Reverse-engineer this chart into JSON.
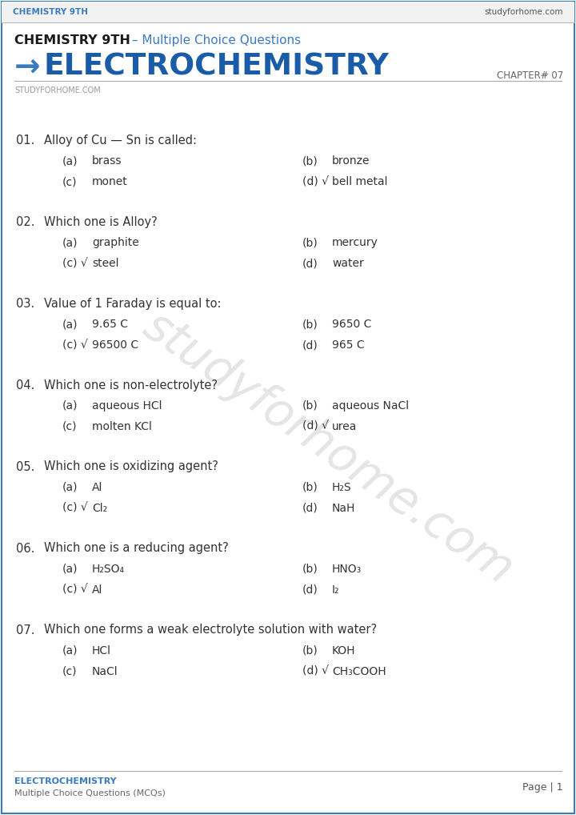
{
  "bg_color": "#ffffff",
  "border_color": "#3a7abf",
  "header_top_left": "CHEMISTRY 9TH",
  "header_top_right": "studyforhome.com",
  "header_text_color": "#3a7abf",
  "header_right_color": "#555555",
  "header_line_color": "#aaaaaa",
  "header_bg_color": "#f5f5f5",
  "title_line1_black": "CHEMISTRY 9TH",
  "title_line1_blue": " – Multiple Choice Questions",
  "title_line2": "ELECTROCHEMISTRY",
  "title_arrow": "→",
  "chapter_label": "CHAPTER# 07",
  "subtitle": "STUDYFORHOME.COM",
  "footer_left1": "ELECTROCHEMISTRY",
  "footer_left2": "Multiple Choice Questions (MCQs)",
  "footer_right": "Page | 1",
  "footer_line_color": "#aaaaaa",
  "watermark_text": "studyforhome.com",
  "blue": "#3a7abf",
  "darkgray": "#333333",
  "lightgray": "#888888",
  "questions": [
    {
      "num": "01.",
      "question": "Alloy of Cu — Sn is called:",
      "a_label": "(a)",
      "a_text": "brass",
      "b_label": "(b)",
      "b_text": "bronze",
      "c_label": "(c)",
      "c_text": "monet",
      "d_label": "(d) √",
      "d_text": "bell metal"
    },
    {
      "num": "02.",
      "question": "Which one is Alloy?",
      "a_label": "(a)",
      "a_text": "graphite",
      "b_label": "(b)",
      "b_text": "mercury",
      "c_label": "(c) √",
      "c_text": "steel",
      "d_label": "(d)",
      "d_text": "water"
    },
    {
      "num": "03.",
      "question": "Value of 1 Faraday is equal to:",
      "a_label": "(a)",
      "a_text": "9.65 C",
      "b_label": "(b)",
      "b_text": "9650 C",
      "c_label": "(c) √",
      "c_text": "96500 C",
      "d_label": "(d)",
      "d_text": "965 C"
    },
    {
      "num": "04.",
      "question": "Which one is non-electrolyte?",
      "a_label": "(a)",
      "a_text": "aqueous HCl",
      "b_label": "(b)",
      "b_text": "aqueous NaCl",
      "c_label": "(c)",
      "c_text": "molten KCl",
      "d_label": "(d) √",
      "d_text": "urea"
    },
    {
      "num": "05.",
      "question": "Which one is oxidizing agent?",
      "a_label": "(a)",
      "a_text": "Al",
      "b_label": "(b)",
      "b_text": "H₂S",
      "c_label": "(c) √",
      "c_text": "Cl₂",
      "d_label": "(d)",
      "d_text": "NaH"
    },
    {
      "num": "06.",
      "question": "Which one is a reducing agent?",
      "a_label": "(a)",
      "a_text": "H₂SO₄",
      "b_label": "(b)",
      "b_text": "HNO₃",
      "c_label": "(c) √",
      "c_text": "Al",
      "d_label": "(d)",
      "d_text": "I₂"
    },
    {
      "num": "07.",
      "question": "Which one forms a weak electrolyte solution with water?",
      "a_label": "(a)",
      "a_text": "HCl",
      "b_label": "(b)",
      "b_text": "KOH",
      "c_label": "(c)",
      "c_text": "NaCl",
      "d_label": "(d) √",
      "d_text": "CH₃COOH"
    }
  ]
}
